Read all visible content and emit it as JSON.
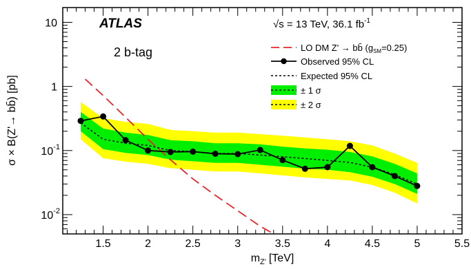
{
  "chart_data": {
    "type": "line",
    "experiment": "ATLAS",
    "energy_lumi": "√s = 13 TeV,  36.1 fb",
    "energy_lumi_sup": "-1",
    "category": "2 b-tag",
    "xlabel": "m",
    "xlabel_sub": "Z'",
    "xlabel_unit": "[TeV]",
    "ylabel": "σ × B(Z'→ bb̄) [pb]",
    "xlim": [
      1.05,
      5.5
    ],
    "ylim": [
      0.005,
      17
    ],
    "yscale": "log",
    "x_ticks": [
      1.5,
      2,
      2.5,
      3,
      3.5,
      4,
      4.5,
      5,
      5.5
    ],
    "x_tick_labels": [
      "1.5",
      "2",
      "2.5",
      "3",
      "3.5",
      "4",
      "4.5",
      "5",
      "5.5"
    ],
    "y_major_ticks": [
      {
        "value": 0.01,
        "base": "10",
        "exp": "-2"
      },
      {
        "value": 0.1,
        "base": "10",
        "exp": "-1"
      },
      {
        "value": 1,
        "base": "1",
        "exp": ""
      },
      {
        "value": 10,
        "base": "10",
        "exp": ""
      }
    ],
    "legend": {
      "position": "top-right",
      "entries": [
        {
          "key": "theory",
          "label": "LO DM Z' → bb̄ (g",
          "label_sub": "SM",
          "label_tail": "=0.25)"
        },
        {
          "key": "observed",
          "label": "Observed 95% CL"
        },
        {
          "key": "expected",
          "label": "Expected 95% CL"
        },
        {
          "key": "band1",
          "label": "± 1 σ"
        },
        {
          "key": "band2",
          "label": "± 2 σ"
        }
      ]
    },
    "colors": {
      "theory": "#e8252a",
      "observed": "#000000",
      "expected": "#000000",
      "band1": "#00ee00",
      "band2": "#ffff00"
    },
    "series": [
      {
        "name": "Observed 95% CL",
        "x": [
          1.25,
          1.5,
          1.75,
          2.0,
          2.25,
          2.5,
          2.75,
          3.0,
          3.25,
          3.5,
          3.75,
          4.0,
          4.25,
          4.5,
          4.75,
          5.0
        ],
        "y": [
          0.29,
          0.34,
          0.145,
          0.1,
          0.095,
          0.096,
          0.089,
          0.088,
          0.102,
          0.071,
          0.052,
          0.055,
          0.118,
          0.055,
          0.04,
          0.028
        ]
      },
      {
        "name": "Expected 95% CL",
        "x": [
          1.25,
          1.5,
          1.75,
          2.0,
          2.25,
          2.5,
          2.75,
          3.0,
          3.25,
          3.5,
          3.75,
          4.0,
          4.25,
          4.5,
          4.75,
          5.0
        ],
        "y": [
          0.27,
          0.15,
          0.13,
          0.12,
          0.1,
          0.096,
          0.09,
          0.09,
          0.085,
          0.08,
          0.075,
          0.07,
          0.065,
          0.055,
          0.042,
          0.03
        ]
      },
      {
        "name": "LO DM Z' → bb̄ (gSM=0.25)",
        "x": [
          1.3,
          1.5,
          1.75,
          2.0,
          2.25,
          2.5,
          2.75,
          3.0,
          3.25,
          3.4
        ],
        "y": [
          1.3,
          0.72,
          0.33,
          0.15,
          0.072,
          0.036,
          0.02,
          0.0115,
          0.0066,
          0.005
        ]
      }
    ],
    "bands": {
      "x": [
        1.25,
        1.5,
        1.75,
        2.0,
        2.25,
        2.5,
        2.75,
        3.0,
        3.25,
        3.5,
        3.75,
        4.0,
        4.25,
        4.5,
        4.75,
        5.0
      ],
      "one_sigma_low": [
        0.2,
        0.105,
        0.092,
        0.085,
        0.072,
        0.068,
        0.064,
        0.064,
        0.06,
        0.056,
        0.052,
        0.05,
        0.046,
        0.039,
        0.03,
        0.021
      ],
      "one_sigma_high": [
        0.4,
        0.22,
        0.19,
        0.175,
        0.145,
        0.14,
        0.13,
        0.13,
        0.125,
        0.115,
        0.108,
        0.103,
        0.095,
        0.081,
        0.062,
        0.044
      ],
      "two_sigma_low": [
        0.15,
        0.076,
        0.067,
        0.062,
        0.053,
        0.05,
        0.047,
        0.047,
        0.044,
        0.041,
        0.038,
        0.036,
        0.034,
        0.029,
        0.022,
        0.015
      ],
      "two_sigma_high": [
        0.57,
        0.32,
        0.28,
        0.26,
        0.21,
        0.2,
        0.19,
        0.19,
        0.18,
        0.17,
        0.16,
        0.15,
        0.14,
        0.12,
        0.09,
        0.064
      ]
    }
  }
}
